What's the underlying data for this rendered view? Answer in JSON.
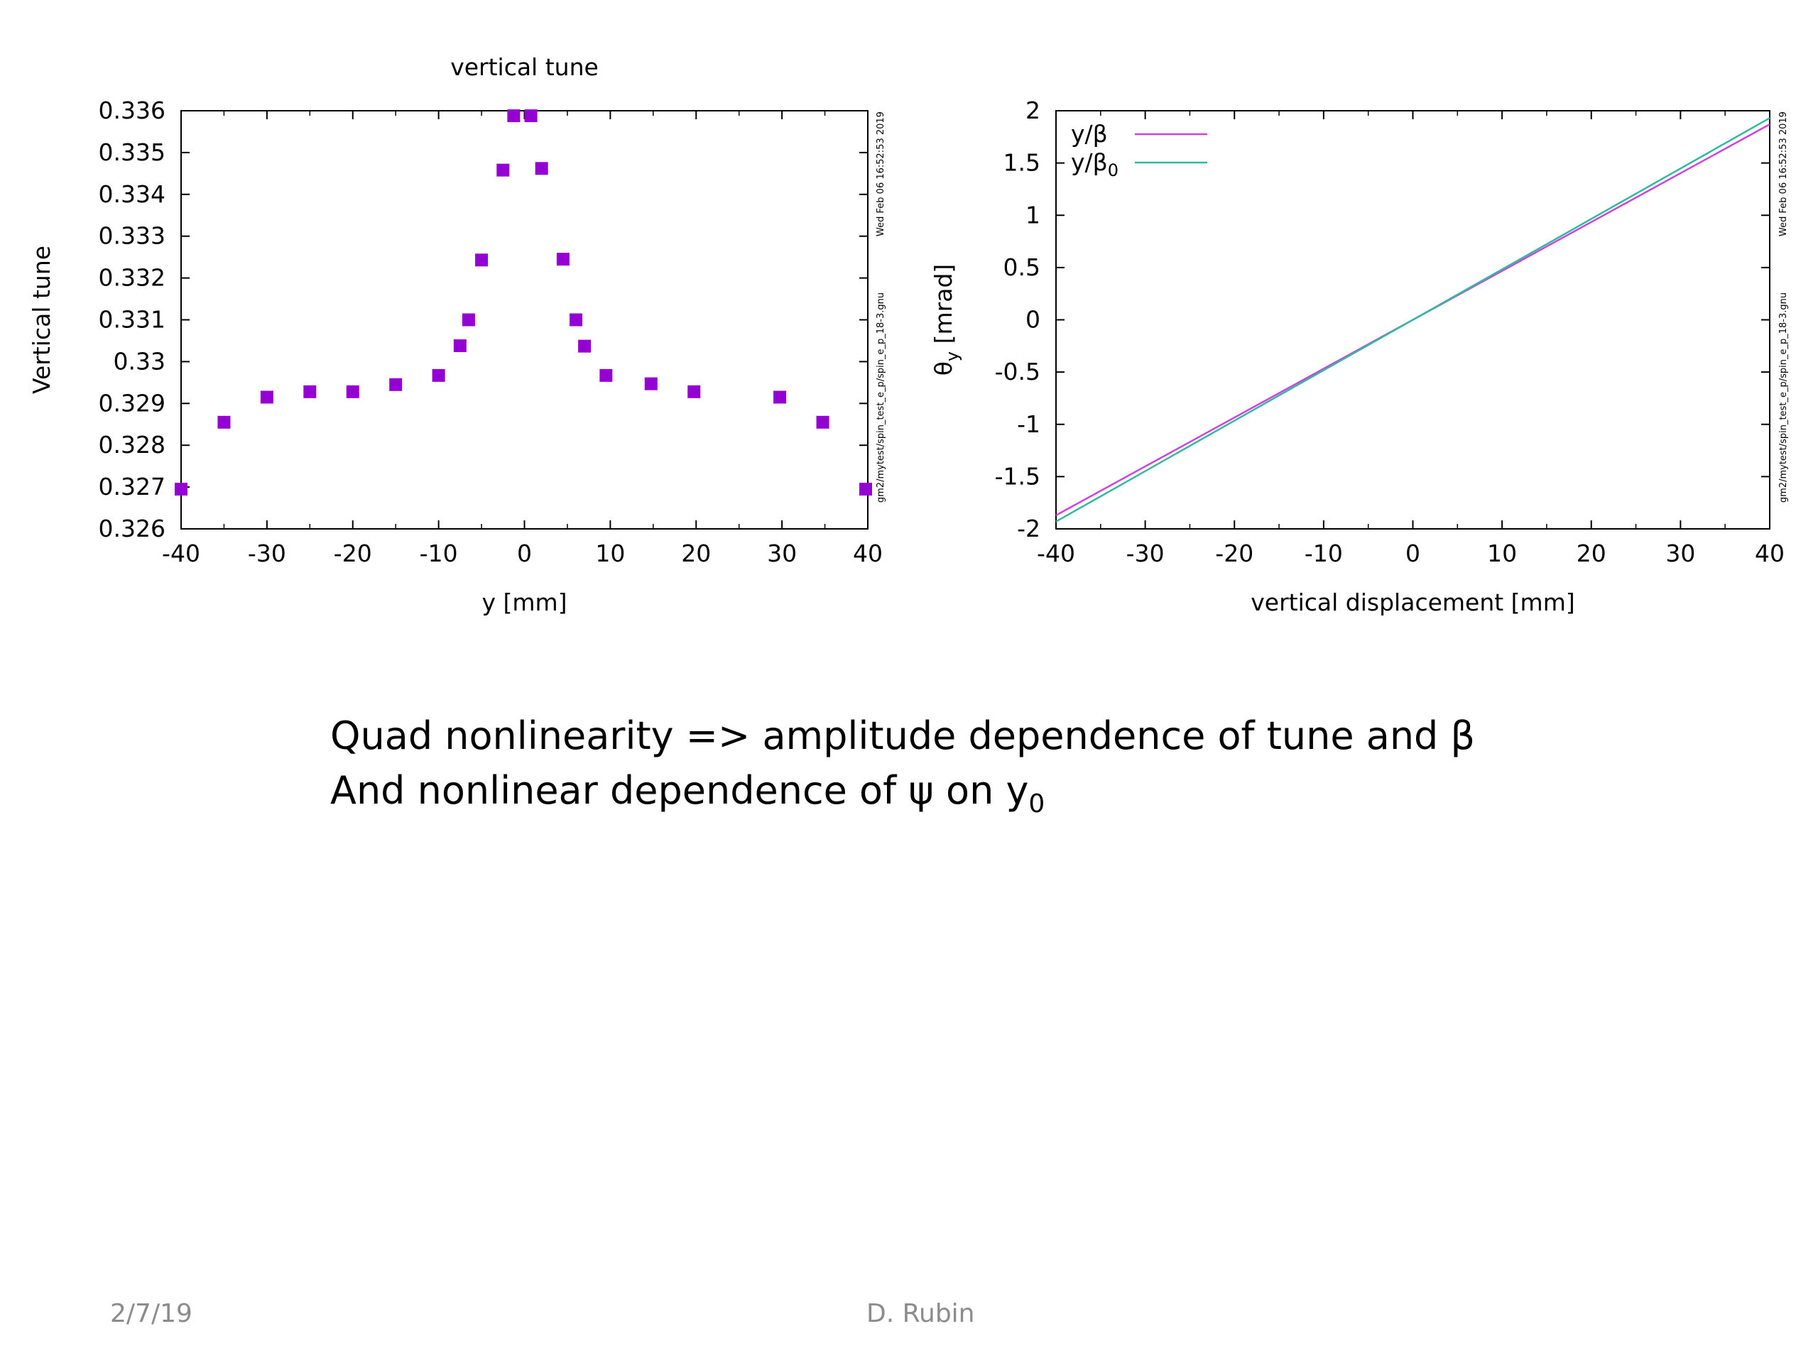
{
  "slide": {
    "caption_line1": {
      "text": "Quad nonlinearity => amplitude dependence of tune and β"
    },
    "caption_line2": {
      "prefix": "And nonlinear dependence of ψ on y",
      "subscript": "0"
    },
    "footer_date": "2/7/19",
    "footer_author": "D. Rubin"
  },
  "chart_data": [
    {
      "type": "scatter",
      "title": "vertical tune",
      "xlabel": "y [mm]",
      "ylabel": "Vertical tune",
      "xlim": [
        -40,
        40
      ],
      "ylim": [
        0.326,
        0.336
      ],
      "xticks": [
        "-40",
        "-30",
        "-20",
        "-10",
        "0",
        "10",
        "20",
        "30",
        "40"
      ],
      "yticks": [
        "0.326",
        "0.327",
        "0.328",
        "0.329",
        "0.33",
        "0.331",
        "0.332",
        "0.333",
        "0.334",
        "0.335",
        "0.336"
      ],
      "timestamp_label": "Wed Feb 06 16:52:53 2019",
      "file_label": "gm2/mytest/spin_test_e_p/spin_e_p_18-3.gnu",
      "marker_color": "#9400d3",
      "grid": false,
      "series": [
        {
          "x": [
            -40,
            -35,
            -30,
            -25,
            -20,
            -15,
            -10,
            -7.5,
            -6.5,
            -5,
            -2.5,
            -1.25,
            0.75,
            2,
            4.5,
            6,
            7,
            9.5,
            14.75,
            19.75,
            29.75,
            34.75,
            39.75
          ],
          "y": [
            0.32695,
            0.32855,
            0.32915,
            0.32928,
            0.32928,
            0.32945,
            0.32967,
            0.33038,
            0.331,
            0.33243,
            0.33458,
            0.33588,
            0.33588,
            0.33462,
            0.33245,
            0.331,
            0.33037,
            0.32967,
            0.32947,
            0.32928,
            0.32915,
            0.32855,
            0.32695
          ]
        }
      ]
    },
    {
      "type": "line",
      "title": "",
      "xlabel": "vertical displacement [mm]",
      "ylabel_main": "θ",
      "ylabel_sub": "y",
      "ylabel_units": "[mrad]",
      "xlim": [
        -40,
        40
      ],
      "ylim": [
        -2,
        2
      ],
      "xticks": [
        "-40",
        "-30",
        "-20",
        "-10",
        "0",
        "10",
        "20",
        "30",
        "40"
      ],
      "yticks": [
        "-2",
        "-1.5",
        "-1",
        "-0.5",
        "0",
        "0.5",
        "1",
        "1.5",
        "2"
      ],
      "legend_position": "top-left",
      "timestamp_label": "Wed Feb 06 16:52:53 2019",
      "file_label": "gm2/mytest/spin_test_e_p/spin_e_p_18-3.gnu",
      "grid": false,
      "series": [
        {
          "name": "y/β",
          "name_sub": "",
          "color": "#cc44dd",
          "x": [
            -40,
            40
          ],
          "y": [
            -1.87,
            1.87
          ]
        },
        {
          "name": "y/β",
          "name_sub": "0",
          "color": "#33b8a0",
          "x": [
            -40,
            40
          ],
          "y": [
            -1.93,
            1.93
          ]
        }
      ]
    }
  ]
}
